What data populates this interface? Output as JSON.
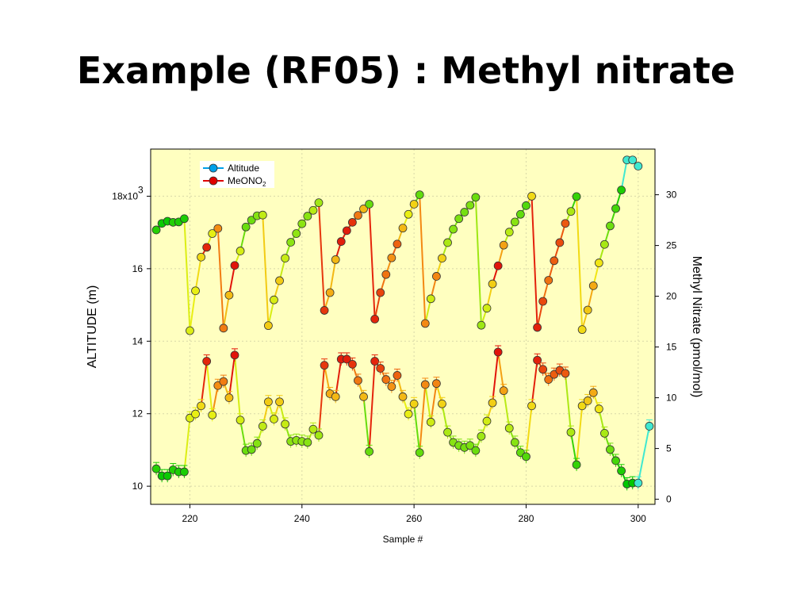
{
  "title": "Example (RF05) : Methyl nitrate",
  "chart_data": {
    "type": "line",
    "xlabel": "Sample #",
    "ylabel_left": "ALTITUDE (m)",
    "ylabel_right": "Methyl Nitrate (pmol/mol)",
    "xlim": [
      213,
      303
    ],
    "ylim_left": [
      9500,
      19300
    ],
    "ylim_right": [
      -0.5,
      34.5
    ],
    "x_ticks": [
      220,
      240,
      260,
      280,
      300
    ],
    "y_left_ticks": [
      10000,
      12000,
      14000,
      16000,
      18000
    ],
    "y_left_tick_labels": [
      "10",
      "12",
      "14",
      "16",
      "18x10"
    ],
    "y_left_exponent": "3",
    "y_right_ticks": [
      0,
      5,
      10,
      15,
      20,
      25,
      30
    ],
    "y_right_tick_labels": [
      "0",
      "5",
      "10",
      "15",
      "20",
      "25",
      "30"
    ],
    "grid": true,
    "background": "#ffffc0",
    "legend_position": "top-left",
    "legend": [
      {
        "label": "Altitude",
        "color": "#00a0e8"
      },
      {
        "label": "MeONO",
        "subscript": "2",
        "color": "#e00000"
      }
    ],
    "series": [
      {
        "name": "Altitude",
        "axis": "left",
        "x": [
          214,
          215,
          216,
          217,
          218,
          219,
          220,
          221,
          222,
          223,
          224,
          225,
          226,
          227,
          228,
          229,
          230,
          231,
          232,
          233,
          234,
          235,
          236,
          237,
          238,
          239,
          240,
          241,
          242,
          243,
          244,
          245,
          246,
          247,
          248,
          249,
          250,
          251,
          252,
          253,
          254,
          255,
          256,
          257,
          258,
          259,
          260,
          261,
          262,
          263,
          264,
          265,
          266,
          267,
          268,
          269,
          270,
          271,
          272,
          273,
          274,
          275,
          276,
          277,
          278,
          279,
          280,
          281,
          282,
          283,
          284,
          285,
          286,
          287,
          288,
          289,
          290,
          291,
          292,
          293,
          294,
          295,
          296,
          297,
          298,
          299,
          300
        ],
        "y": [
          17070,
          17250,
          17310,
          17280,
          17290,
          17380,
          14290,
          15390,
          16320,
          16590,
          16970,
          17110,
          14360,
          15270,
          16090,
          16490,
          17150,
          17340,
          17460,
          17480,
          14430,
          15140,
          15670,
          16290,
          16730,
          16970,
          17240,
          17450,
          17610,
          17820,
          14850,
          15340,
          16250,
          16750,
          17050,
          17280,
          17470,
          17650,
          17780,
          14610,
          15340,
          15840,
          16300,
          16680,
          17120,
          17500,
          17780,
          18040,
          14490,
          15170,
          15790,
          16290,
          16720,
          17090,
          17380,
          17560,
          17750,
          17970,
          14440,
          14910,
          15580,
          16080,
          16650,
          17010,
          17290,
          17500,
          17740,
          18000,
          14380,
          15100,
          15680,
          16220,
          16720,
          17250,
          17580,
          17990,
          14320,
          14860,
          15530,
          16160,
          16670,
          17180,
          17660,
          18170,
          19000,
          19000,
          18830
        ]
      },
      {
        "name": "MeONO2",
        "axis": "right",
        "x": [
          214,
          215,
          216,
          217,
          218,
          219,
          220,
          221,
          222,
          223,
          224,
          225,
          226,
          227,
          228,
          229,
          230,
          231,
          232,
          233,
          234,
          235,
          236,
          237,
          238,
          239,
          240,
          241,
          242,
          243,
          244,
          245,
          246,
          247,
          248,
          249,
          250,
          251,
          252,
          253,
          254,
          255,
          256,
          257,
          258,
          259,
          260,
          261,
          262,
          263,
          264,
          265,
          266,
          267,
          268,
          269,
          270,
          271,
          272,
          273,
          274,
          275,
          276,
          277,
          278,
          279,
          280,
          281,
          282,
          283,
          284,
          285,
          286,
          287,
          288,
          289,
          290,
          291,
          292,
          293,
          294,
          295,
          296,
          297,
          298,
          299,
          300,
          302
        ],
        "y": [
          3.0,
          2.3,
          2.3,
          2.9,
          2.7,
          2.7,
          8.0,
          8.4,
          9.2,
          13.6,
          8.3,
          11.2,
          11.6,
          10.0,
          14.2,
          7.8,
          4.8,
          4.9,
          5.5,
          7.2,
          9.6,
          7.9,
          9.6,
          7.4,
          5.7,
          5.8,
          5.7,
          5.6,
          6.9,
          6.3,
          13.2,
          10.4,
          10.1,
          13.8,
          13.8,
          13.3,
          11.7,
          10.1,
          4.7,
          13.6,
          12.9,
          11.8,
          11.1,
          12.2,
          10.1,
          8.4,
          9.4,
          4.6,
          11.3,
          7.6,
          11.4,
          9.4,
          6.6,
          5.6,
          5.3,
          5.1,
          5.3,
          4.8,
          6.2,
          7.7,
          9.5,
          14.5,
          10.7,
          7.0,
          5.6,
          4.6,
          4.2,
          9.2,
          13.7,
          12.8,
          11.8,
          12.3,
          12.7,
          12.4,
          6.6,
          3.4,
          9.2,
          9.7,
          10.5,
          8.9,
          6.5,
          4.9,
          3.8,
          2.8,
          1.5,
          1.6,
          1.6,
          7.2
        ]
      }
    ]
  }
}
